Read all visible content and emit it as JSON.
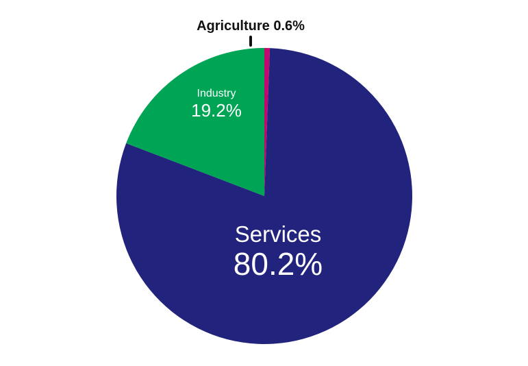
{
  "chart_data": {
    "type": "pie",
    "title": "",
    "slices": [
      {
        "name": "Services",
        "value": 80.2,
        "value_label": "80.2%",
        "color": "#22237c"
      },
      {
        "name": "Industry",
        "value": 19.2,
        "value_label": "19.2%",
        "color": "#00a455"
      },
      {
        "name": "Agriculture",
        "value": 0.6,
        "value_label": "0.6%",
        "color": "#c0086f"
      }
    ],
    "agriculture_label": "Agriculture 0.6%",
    "legend": "none"
  }
}
